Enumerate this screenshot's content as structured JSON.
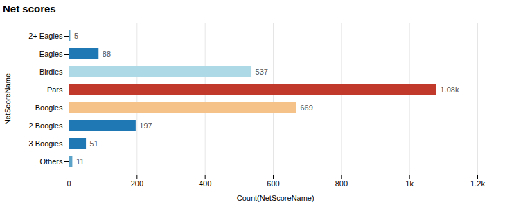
{
  "chart_data": {
    "type": "bar",
    "orientation": "horizontal",
    "title": "Net scores",
    "xlabel": "=Count(NetScoreName)",
    "ylabel": "NetScoreName",
    "categories": [
      "Others",
      "3 Boogies",
      "2 Boogies",
      "Boogies",
      "Pars",
      "Birdies",
      "Eagles",
      "2+ Eagles"
    ],
    "values": [
      11,
      51,
      197,
      669,
      1080,
      537,
      88,
      5
    ],
    "value_labels": [
      "11",
      "51",
      "197",
      "669",
      "1.08k",
      "537",
      "88",
      "5"
    ],
    "data_labels": true,
    "colors": [
      "#5ba3c9",
      "#1f78b4",
      "#1f78b4",
      "#f5c28a",
      "#c0392b",
      "#add8e6",
      "#1f78b4",
      "#5ba3c9"
    ],
    "xlim": [
      0,
      1200
    ],
    "xticks": [
      0,
      200,
      400,
      600,
      800,
      {
        "value": 1000,
        "label": "1k"
      },
      {
        "value": 1200,
        "label": "1.2k"
      }
    ],
    "grid": true
  }
}
